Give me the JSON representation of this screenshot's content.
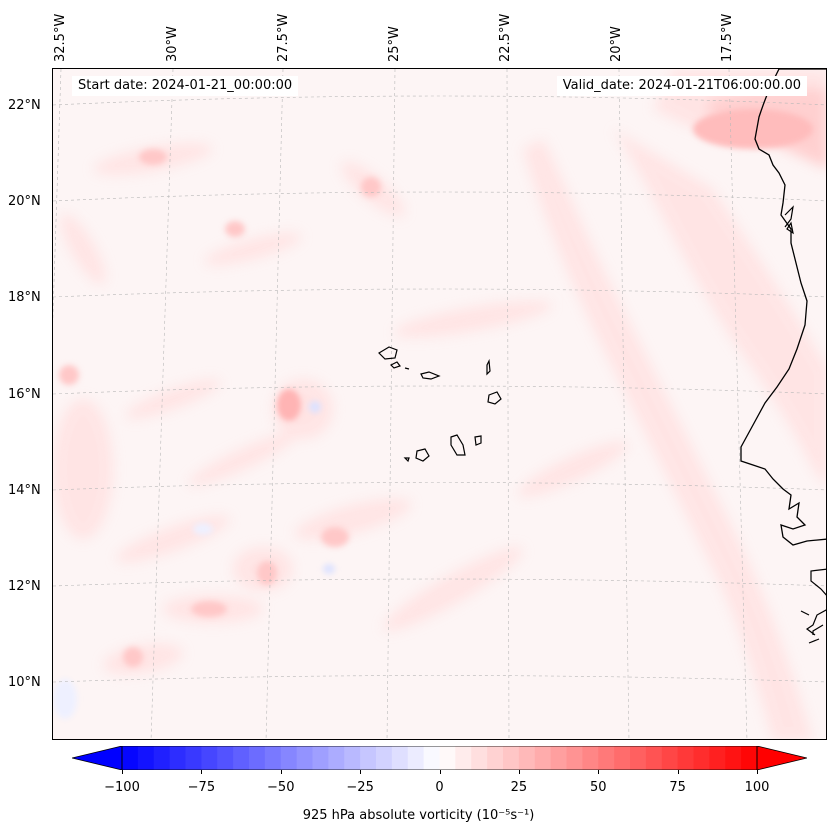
{
  "header": {
    "start_date": "Start date: 2024-01-21_00:00:00",
    "valid_date": "Valid_date: 2024-01-21T06:00:00.00"
  },
  "map": {
    "projection": "Lambert conformal",
    "region": "Cape Verde / West African coast",
    "lon_labels": [
      "32.5°W",
      "30°W",
      "27.5°W",
      "25°W",
      "22.5°W",
      "20°W",
      "17.5°W"
    ],
    "lat_labels": [
      "22°N",
      "20°N",
      "18°N",
      "16°N",
      "14°N",
      "12°N",
      "10°N"
    ],
    "gridlines": true,
    "field": "925 hPa absolute vorticity",
    "coastline_color": "#000000"
  },
  "colorbar": {
    "ticks": [
      "−100",
      "−75",
      "−50",
      "−25",
      "0",
      "25",
      "50",
      "75",
      "100"
    ],
    "min": -100,
    "max": 100,
    "cmap": "bwr",
    "extend": "both",
    "label": "925 hPa absolute vorticity (10⁻⁵s⁻¹)",
    "low_color": "#0000ff",
    "mid_color": "#ffffff",
    "high_color": "#ff0000"
  }
}
